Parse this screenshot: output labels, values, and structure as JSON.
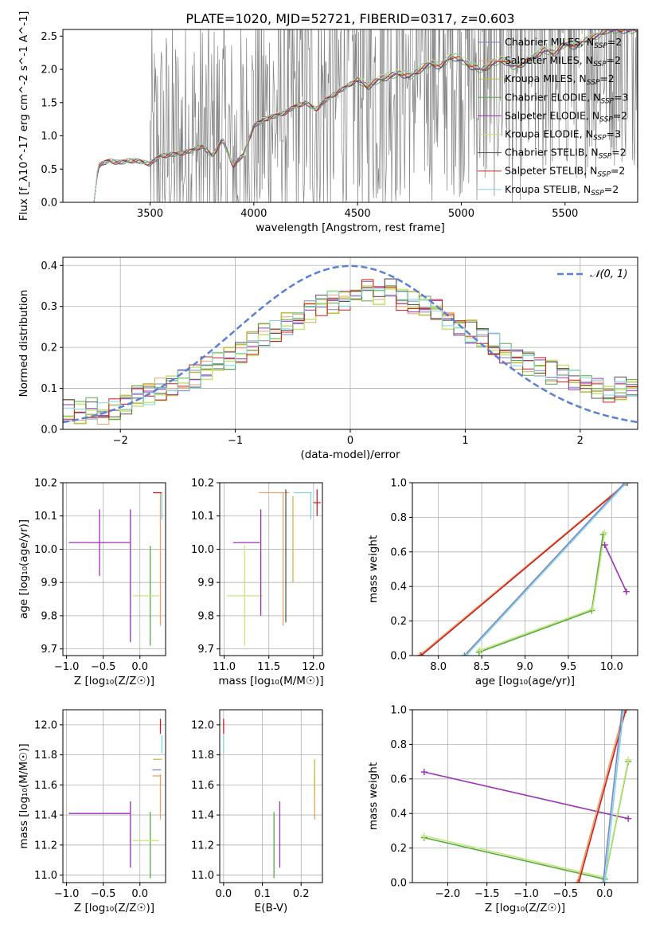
{
  "page_title": "PLATE=1020, MJD=52721, FIBERID=0317, z=0.603",
  "colors": {
    "chabrier_miles": "#7b83c9",
    "salpeter_miles": "#e8a26a",
    "kroupa_miles": "#bfbf40",
    "chabrier_elodie": "#55aa44",
    "salpeter_elodie": "#9b30b5",
    "kroupa_elodie": "#c6e67a",
    "chabrier_stelib": "#555555",
    "salpeter_stelib": "#cc1f1f",
    "kroupa_stelib": "#80d4e0",
    "data": "#808080",
    "normal": "#5b7fd6",
    "grid": "#b0b0b0"
  },
  "legend": [
    {
      "label": "Chabrier MILES, N",
      "suffix": "=2",
      "color_key": "chabrier_miles"
    },
    {
      "label": "Salpeter MILES, N",
      "suffix": "=2",
      "color_key": "salpeter_miles"
    },
    {
      "label": "Kroupa MILES, N",
      "suffix": "=2",
      "color_key": "kroupa_miles"
    },
    {
      "label": "Chabrier ELODIE, N",
      "suffix": "=3",
      "color_key": "chabrier_elodie"
    },
    {
      "label": "Salpeter ELODIE, N",
      "suffix": "=2",
      "color_key": "salpeter_elodie"
    },
    {
      "label": "Kroupa ELODIE, N",
      "suffix": "=3",
      "color_key": "kroupa_elodie"
    },
    {
      "label": "Chabrier STELIB, N",
      "suffix": "=2",
      "color_key": "chabrier_stelib"
    },
    {
      "label": "Salpeter STELIB, N",
      "suffix": "=2",
      "color_key": "salpeter_stelib"
    },
    {
      "label": "Kroupa STELIB, N",
      "suffix": "=2",
      "color_key": "kroupa_stelib"
    }
  ],
  "chart_data": [
    {
      "id": "spectrum",
      "type": "line",
      "xlabel": "wavelength [Angstrom, rest frame]",
      "ylabel": "Flux [f_λ10^-17 erg cm^-2 s^-1 A^-1]",
      "xlim": [
        3080,
        5850
      ],
      "ylim": [
        0,
        2.6
      ],
      "xticks": [
        3500,
        4000,
        4500,
        5000,
        5500
      ],
      "yticks": [
        0.0,
        0.5,
        1.0,
        1.5,
        2.0,
        2.5
      ],
      "grid": false,
      "model_continuum": {
        "x": [
          3230,
          3250,
          3300,
          3350,
          3400,
          3450,
          3500,
          3550,
          3600,
          3650,
          3700,
          3750,
          3800,
          3850,
          3900,
          3950,
          4000,
          4050,
          4100,
          4150,
          4200,
          4250,
          4300,
          4350,
          4400,
          4450,
          4500,
          4550,
          4600,
          4650,
          4700,
          4750,
          4800,
          4850,
          4900,
          4950,
          5000,
          5050,
          5100,
          5150,
          5200,
          5250,
          5300,
          5350,
          5400,
          5450,
          5500,
          5550,
          5600,
          5650,
          5700
        ],
        "y": [
          0.0,
          0.55,
          0.63,
          0.6,
          0.63,
          0.62,
          0.58,
          0.7,
          0.72,
          0.74,
          0.78,
          0.85,
          0.7,
          0.95,
          0.55,
          0.72,
          1.15,
          1.25,
          1.3,
          1.35,
          1.45,
          1.5,
          1.4,
          1.55,
          1.65,
          1.75,
          1.85,
          1.75,
          1.85,
          1.9,
          1.95,
          1.9,
          2.0,
          2.1,
          2.05,
          2.2,
          2.15,
          2.05,
          2.0,
          2.1,
          2.15,
          2.05,
          2.1,
          2.2,
          2.3,
          2.25,
          2.4,
          2.35,
          2.45,
          2.5,
          2.6
        ]
      }
    },
    {
      "id": "residuals",
      "type": "line",
      "xlabel": "(data-model)/error",
      "ylabel": "Normed distribution",
      "xlim": [
        -2.5,
        2.5
      ],
      "ylim": [
        0,
        0.42
      ],
      "xticks": [
        -2,
        -1,
        0,
        1,
        2
      ],
      "yticks": [
        0.0,
        0.1,
        0.2,
        0.3,
        0.4
      ],
      "grid": true,
      "legend": "𝒩(0, 1)",
      "normal": {
        "mean": 0,
        "sigma": 1
      },
      "histogram_base": {
        "bin_width": 0.1,
        "x": [
          -2.5,
          -2.4,
          -2.3,
          -2.2,
          -2.1,
          -2.0,
          -1.9,
          -1.8,
          -1.7,
          -1.6,
          -1.5,
          -1.4,
          -1.3,
          -1.2,
          -1.1,
          -1.0,
          -0.9,
          -0.8,
          -0.7,
          -0.6,
          -0.5,
          -0.4,
          -0.3,
          -0.2,
          -0.1,
          0.0,
          0.1,
          0.2,
          0.3,
          0.4,
          0.5,
          0.6,
          0.7,
          0.8,
          0.9,
          1.0,
          1.1,
          1.2,
          1.3,
          1.4,
          1.5,
          1.6,
          1.7,
          1.8,
          1.9,
          2.0,
          2.1,
          2.2,
          2.3,
          2.4
        ],
        "y": [
          0.05,
          0.04,
          0.05,
          0.04,
          0.05,
          0.06,
          0.08,
          0.09,
          0.1,
          0.11,
          0.12,
          0.13,
          0.15,
          0.16,
          0.17,
          0.19,
          0.21,
          0.23,
          0.24,
          0.26,
          0.27,
          0.29,
          0.3,
          0.31,
          0.32,
          0.33,
          0.34,
          0.33,
          0.34,
          0.32,
          0.31,
          0.3,
          0.29,
          0.27,
          0.25,
          0.24,
          0.22,
          0.21,
          0.19,
          0.17,
          0.16,
          0.15,
          0.14,
          0.13,
          0.12,
          0.11,
          0.1,
          0.09,
          0.1,
          0.1
        ]
      }
    },
    {
      "id": "age_vs_Z",
      "type": "scatter",
      "xlabel": "Z [log₁₀(Z/Z☉)]",
      "ylabel": "age  [log₁₀(age/yr)]",
      "xlim": [
        -1.05,
        0.35
      ],
      "ylim": [
        9.68,
        10.2
      ],
      "xticks": [
        -1.0,
        -0.5,
        0.0
      ],
      "yticks": [
        9.7,
        9.8,
        9.9,
        10.0,
        10.1,
        10.2
      ],
      "grid": true,
      "errorbars": [
        {
          "series": "salpeter_elodie",
          "x": -0.55,
          "xerr": 0.42,
          "y": 10.02,
          "yerr": 0.1
        },
        {
          "series": "salpeter_elodie",
          "x": -0.13,
          "xerr": 0.0,
          "y": 9.92,
          "yerr": 0.2
        },
        {
          "series": "chabrier_elodie",
          "x": 0.14,
          "xerr": 0.0,
          "y": 9.86,
          "yerr": 0.15
        },
        {
          "series": "kroupa_elodie",
          "x": 0.08,
          "xerr": 0.18,
          "y": 9.86,
          "yerr": 0.0
        },
        {
          "series": "salpeter_miles",
          "x": 0.28,
          "xerr": 0.0,
          "y": 9.97,
          "yerr": 0.2
        },
        {
          "series": "salpeter_stelib",
          "x": 0.24,
          "xerr": 0.06,
          "y": 10.17,
          "yerr": 0.0
        },
        {
          "series": "kroupa_stelib",
          "x": 0.3,
          "xerr": 0.0,
          "y": 10.13,
          "yerr": 0.04
        }
      ]
    },
    {
      "id": "age_vs_mass",
      "type": "scatter",
      "xlabel": "mass [log₁₀(M/M☉)]",
      "ylabel": "",
      "xlim": [
        10.95,
        12.1
      ],
      "ylim": [
        9.68,
        10.2
      ],
      "xticks": [
        11.0,
        11.5,
        12.0
      ],
      "yticks": [
        9.7,
        9.8,
        9.9,
        10.0,
        10.1,
        10.2
      ],
      "grid": true,
      "errorbars": [
        {
          "series": "kroupa_elodie",
          "x": 11.23,
          "xerr": 0.2,
          "y": 9.86,
          "yerr": 0.15
        },
        {
          "series": "salpeter_elodie",
          "x": 11.25,
          "xerr": 0.15,
          "y": 10.02,
          "yerr": 0.0
        },
        {
          "series": "salpeter_elodie",
          "x": 11.41,
          "xerr": 0.0,
          "y": 9.96,
          "yerr": 0.16
        },
        {
          "series": "salpeter_miles",
          "x": 11.66,
          "xerr": 0.0,
          "y": 9.97,
          "yerr": 0.2
        },
        {
          "series": "salpeter_miles",
          "x": 11.56,
          "xerr": 0.17,
          "y": 10.17,
          "yerr": 0.0
        },
        {
          "series": "chabrier_stelib",
          "x": 11.69,
          "xerr": 0.0,
          "y": 9.98,
          "yerr": 0.2
        },
        {
          "series": "kroupa_miles",
          "x": 11.77,
          "xerr": 0.0,
          "y": 10.03,
          "yerr": 0.13
        },
        {
          "series": "kroupa_stelib",
          "x": 11.88,
          "xerr": 0.1,
          "y": 10.17,
          "yerr": 0.0
        },
        {
          "series": "kroupa_stelib",
          "x": 11.97,
          "xerr": 0.0,
          "y": 10.13,
          "yerr": 0.04
        },
        {
          "series": "salpeter_stelib",
          "x": 12.04,
          "xerr": 0.04,
          "y": 10.14,
          "yerr": 0.04
        }
      ]
    },
    {
      "id": "massweight_vs_age",
      "type": "line",
      "xlabel": "age  [log₁₀(age/yr)]",
      "ylabel": "mass weight",
      "xlim": [
        7.7,
        10.3
      ],
      "ylim": [
        0,
        1.0
      ],
      "xticks": [
        8.0,
        8.5,
        9.0,
        9.5,
        10.0
      ],
      "yticks": [
        0.0,
        0.2,
        0.4,
        0.6,
        0.8,
        1.0
      ],
      "grid": true,
      "series": [
        {
          "name": "",
          "color_key": "salpeter_miles",
          "x": [
            7.78,
            10.17
          ],
          "y": [
            0.0,
            1.0
          ]
        },
        {
          "name": "",
          "color_key": "salpeter_stelib",
          "x": [
            7.8,
            10.18
          ],
          "y": [
            0.0,
            1.0
          ]
        },
        {
          "name": "",
          "color_key": "chabrier_miles",
          "x": [
            8.3,
            10.15
          ],
          "y": [
            0.0,
            1.0
          ]
        },
        {
          "name": "",
          "color_key": "kroupa_stelib",
          "x": [
            8.32,
            10.17
          ],
          "y": [
            0.0,
            1.0
          ]
        },
        {
          "name": "",
          "color_key": "chabrier_elodie",
          "x": [
            8.47,
            9.77,
            9.9
          ],
          "y": [
            0.02,
            0.26,
            0.7
          ]
        },
        {
          "name": "",
          "color_key": "kroupa_elodie",
          "x": [
            8.48,
            9.78,
            9.92
          ],
          "y": [
            0.03,
            0.27,
            0.71
          ]
        },
        {
          "name": "",
          "color_key": "salpeter_elodie",
          "x": [
            9.92,
            10.17
          ],
          "y": [
            0.64,
            0.37
          ]
        }
      ]
    },
    {
      "id": "mass_vs_Z",
      "type": "scatter",
      "xlabel": "Z [log₁₀(Z/Z☉)]",
      "ylabel": "mass [log₁₀(M/M☉)]",
      "xlim": [
        -1.05,
        0.35
      ],
      "ylim": [
        10.95,
        12.1
      ],
      "xticks": [
        -1.0,
        -0.5,
        0.0
      ],
      "yticks": [
        11.0,
        11.2,
        11.4,
        11.6,
        11.8,
        12.0
      ],
      "grid": true,
      "errorbars": [
        {
          "series": "salpeter_elodie",
          "x": -0.55,
          "xerr": 0.42,
          "y": 11.41,
          "yerr": 0.0
        },
        {
          "series": "salpeter_elodie",
          "x": -0.13,
          "xerr": 0.0,
          "y": 11.27,
          "yerr": 0.22
        },
        {
          "series": "chabrier_elodie",
          "x": 0.14,
          "xerr": 0.0,
          "y": 11.2,
          "yerr": 0.22
        },
        {
          "series": "kroupa_elodie",
          "x": 0.08,
          "xerr": 0.18,
          "y": 11.23,
          "yerr": 0.0
        },
        {
          "series": "salpeter_miles",
          "x": 0.28,
          "xerr": 0.0,
          "y": 11.52,
          "yerr": 0.15
        },
        {
          "series": "salpeter_miles",
          "x": 0.23,
          "xerr": 0.06,
          "y": 11.66,
          "yerr": 0.0
        },
        {
          "series": "chabrier_miles",
          "x": 0.23,
          "xerr": 0.06,
          "y": 11.7,
          "yerr": 0.0
        },
        {
          "series": "kroupa_miles",
          "x": 0.24,
          "xerr": 0.06,
          "y": 11.77,
          "yerr": 0.0
        },
        {
          "series": "salpeter_stelib",
          "x": 0.28,
          "xerr": 0.0,
          "y": 11.99,
          "yerr": 0.05
        },
        {
          "series": "kroupa_stelib",
          "x": 0.3,
          "xerr": 0.0,
          "y": 11.87,
          "yerr": 0.06
        }
      ]
    },
    {
      "id": "mass_vs_ebv",
      "type": "scatter",
      "xlabel": "E(B-V)",
      "ylabel": "",
      "xlim": [
        -0.01,
        0.255
      ],
      "ylim": [
        10.95,
        12.1
      ],
      "xticks": [
        0.0,
        0.1,
        0.2
      ],
      "yticks": [
        11.0,
        11.2,
        11.4,
        11.6,
        11.8,
        12.0
      ],
      "grid": true,
      "errorbars": [
        {
          "series": "salpeter_stelib",
          "x": 0.0,
          "xerr": 0.0,
          "y": 11.99,
          "yerr": 0.05
        },
        {
          "series": "kroupa_stelib",
          "x": 0.0,
          "xerr": 0.0,
          "y": 11.87,
          "yerr": 0.06
        },
        {
          "series": "chabrier_elodie",
          "x": 0.13,
          "xerr": 0.0,
          "y": 11.2,
          "yerr": 0.22
        },
        {
          "series": "salpeter_elodie",
          "x": 0.145,
          "xerr": 0.0,
          "y": 11.27,
          "yerr": 0.22
        },
        {
          "series": "salpeter_miles",
          "x": 0.235,
          "xerr": 0.0,
          "y": 11.52,
          "yerr": 0.15
        },
        {
          "series": "kroupa_miles",
          "x": 0.235,
          "xerr": 0.0,
          "y": 11.65,
          "yerr": 0.12
        }
      ]
    },
    {
      "id": "massweight_vs_Z",
      "type": "line",
      "xlabel": "Z [log₁₀(Z/Z☉)]",
      "ylabel": "mass weight",
      "xlim": [
        -2.45,
        0.42
      ],
      "ylim": [
        0,
        1.0
      ],
      "xticks": [
        -2.0,
        -1.5,
        -1.0,
        -0.5,
        0.0
      ],
      "yticks": [
        0.0,
        0.2,
        0.4,
        0.6,
        0.8,
        1.0
      ],
      "grid": true,
      "series": [
        {
          "name": "",
          "color_key": "salpeter_elodie",
          "x": [
            -2.3,
            0.3
          ],
          "y": [
            0.64,
            0.37
          ]
        },
        {
          "name": "",
          "color_key": "chabrier_elodie",
          "x": [
            -2.3,
            0.0,
            0.3
          ],
          "y": [
            0.26,
            0.02,
            0.7
          ]
        },
        {
          "name": "",
          "color_key": "kroupa_elodie",
          "x": [
            -2.3,
            0.0,
            0.3
          ],
          "y": [
            0.27,
            0.03,
            0.71
          ]
        },
        {
          "name": "",
          "color_key": "salpeter_miles",
          "x": [
            -0.35,
            0.25
          ],
          "y": [
            0.0,
            1.0
          ]
        },
        {
          "name": "",
          "color_key": "salpeter_stelib",
          "x": [
            -0.33,
            0.27
          ],
          "y": [
            0.0,
            1.0
          ]
        },
        {
          "name": "",
          "color_key": "chabrier_miles",
          "x": [
            -0.02,
            0.22
          ],
          "y": [
            0.0,
            1.0
          ]
        },
        {
          "name": "",
          "color_key": "kroupa_stelib",
          "x": [
            0.0,
            0.24
          ],
          "y": [
            0.0,
            1.0
          ]
        }
      ]
    }
  ]
}
